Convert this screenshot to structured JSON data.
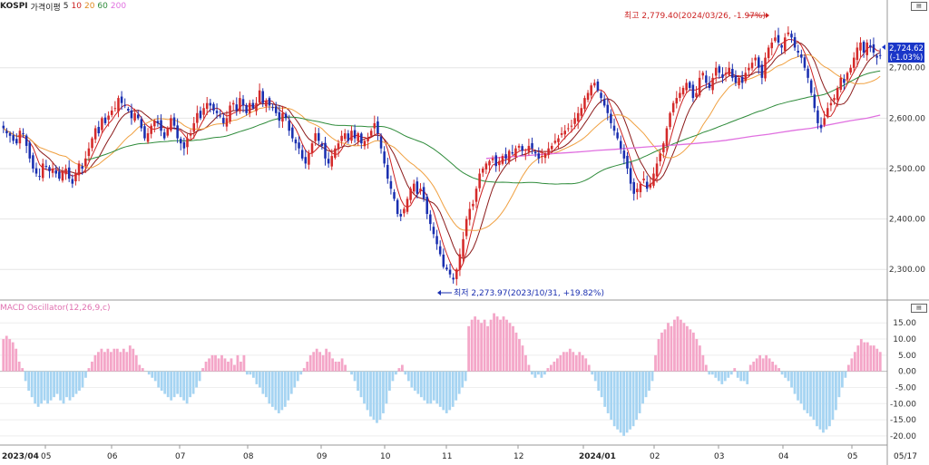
{
  "legend": {
    "symbol": "KOSPI",
    "indicator": "가격이평",
    "ma_items": [
      {
        "label": "5",
        "color": "#cc2222"
      },
      {
        "label": "10",
        "color": "#8b1a1a"
      },
      {
        "label": "20",
        "color": "#f0a040"
      },
      {
        "label": "60",
        "color": "#2e8b3a"
      },
      {
        "label": "200",
        "color": "#e070e0"
      }
    ]
  },
  "macd": {
    "label": "MACD Oscillator(12,26,9,c)",
    "positive_color": "#f4a6c8",
    "negative_color": "#a6d4f2"
  },
  "annotations": {
    "high": "최고 2,779.40(2024/03/26, -1.97%)",
    "low": "최저 2,273.97(2023/10/31, +19.82%)"
  },
  "current": {
    "price": "2,724.62",
    "change": "(-1.03%)"
  },
  "colors": {
    "up": "#d42a2a",
    "down": "#1a2fb0",
    "ma5": "#cc2222",
    "ma10": "#8b1a1a",
    "ma20": "#f0a040",
    "ma60": "#2e8b3a",
    "ma200": "#e070e0",
    "price_box": "#1a36c8"
  },
  "chart_data": {
    "type": "candlestick",
    "price_axis": {
      "ylim": [
        2250,
        2820
      ],
      "ticks": [
        2300,
        2400,
        2500,
        2600,
        2700
      ],
      "tick_labels": [
        "2,300.00",
        "2,400.00",
        "2,500.00",
        "2,600.00",
        "2,700.00"
      ]
    },
    "macd_axis": {
      "ylim": [
        -22,
        19
      ],
      "ticks": [
        15,
        10,
        5,
        0,
        -5,
        -10,
        -15,
        -20
      ],
      "tick_labels": [
        "15.00",
        "10.00",
        "5.00",
        "0.00",
        "-5.00",
        "-10.00",
        "-15.00",
        "-20.00"
      ]
    },
    "x_labels": [
      "2023/04",
      "05",
      "06",
      "07",
      "08",
      "09",
      "10",
      "11",
      "12",
      "2024/01",
      "02",
      "03",
      "04",
      "05",
      "05/17"
    ],
    "close": [
      2580,
      2570,
      2565,
      2555,
      2550,
      2575,
      2570,
      2545,
      2520,
      2500,
      2490,
      2485,
      2510,
      2505,
      2495,
      2500,
      2490,
      2480,
      2495,
      2500,
      2480,
      2470,
      2490,
      2510,
      2500,
      2520,
      2540,
      2560,
      2580,
      2570,
      2600,
      2590,
      2605,
      2615,
      2620,
      2640,
      2630,
      2625,
      2615,
      2600,
      2610,
      2600,
      2580,
      2560,
      2570,
      2585,
      2595,
      2590,
      2575,
      2560,
      2580,
      2600,
      2585,
      2560,
      2550,
      2540,
      2560,
      2570,
      2590,
      2610,
      2600,
      2620,
      2630,
      2625,
      2615,
      2610,
      2605,
      2590,
      2600,
      2625,
      2630,
      2615,
      2640,
      2625,
      2610,
      2630,
      2620,
      2630,
      2655,
      2630,
      2635,
      2625,
      2620,
      2610,
      2595,
      2610,
      2600,
      2575,
      2560,
      2550,
      2540,
      2520,
      2510,
      2530,
      2550,
      2570,
      2555,
      2545,
      2520,
      2510,
      2525,
      2540,
      2550,
      2565,
      2570,
      2555,
      2575,
      2560,
      2570,
      2550,
      2555,
      2560,
      2575,
      2590,
      2570,
      2540,
      2510,
      2480,
      2460,
      2440,
      2410,
      2405,
      2420,
      2440,
      2460,
      2470,
      2450,
      2460,
      2440,
      2410,
      2390,
      2370,
      2350,
      2330,
      2305,
      2300,
      2290,
      2280,
      2300,
      2330,
      2360,
      2400,
      2420,
      2430,
      2460,
      2490,
      2500,
      2510,
      2515,
      2520,
      2505,
      2515,
      2525,
      2520,
      2535,
      2530,
      2540,
      2545,
      2535,
      2530,
      2545,
      2540,
      2530,
      2520,
      2525,
      2530,
      2540,
      2545,
      2555,
      2560,
      2570,
      2575,
      2580,
      2585,
      2600,
      2610,
      2620,
      2640,
      2650,
      2665,
      2670,
      2655,
      2640,
      2625,
      2610,
      2590,
      2575,
      2560,
      2540,
      2520,
      2500,
      2470,
      2450,
      2460,
      2470,
      2480,
      2460,
      2470,
      2490,
      2510,
      2530,
      2550,
      2580,
      2610,
      2630,
      2640,
      2650,
      2660,
      2670,
      2660,
      2640,
      2650,
      2680,
      2690,
      2670,
      2660,
      2680,
      2700,
      2690,
      2680,
      2690,
      2700,
      2680,
      2670,
      2680,
      2670,
      2690,
      2700,
      2710,
      2720,
      2700,
      2680,
      2720,
      2740,
      2750,
      2760,
      2750,
      2740,
      2760,
      2770,
      2760,
      2740,
      2730,
      2720,
      2700,
      2680,
      2650,
      2620,
      2590,
      2580,
      2600,
      2620,
      2630,
      2640,
      2660,
      2680,
      2670,
      2690,
      2700,
      2720,
      2740,
      2750,
      2730,
      2750,
      2740,
      2730,
      2720,
      2724.62
    ],
    "ma200": [
      2520,
      2522,
      2524,
      2526,
      2528,
      2530,
      2532,
      2534,
      2536,
      2538,
      2540,
      2542,
      2544,
      2546,
      2548,
      2550,
      2553,
      2556,
      2560,
      2564,
      2568,
      2572,
      2576,
      2580,
      2585,
      2590,
      2595,
      2600,
      2606
    ],
    "macd_oscillator": [
      10,
      11,
      10,
      9,
      7,
      3,
      1,
      -3,
      -6,
      -8,
      -10,
      -11,
      -10,
      -9,
      -10,
      -9,
      -8,
      -7,
      -9,
      -10,
      -8,
      -9,
      -8,
      -7,
      -6,
      -5,
      -2,
      1,
      3,
      5,
      6,
      7,
      6,
      7,
      6,
      7,
      7,
      6,
      7,
      6,
      8,
      7,
      5,
      2,
      1,
      0,
      -1,
      -2,
      -3,
      -5,
      -6,
      -7,
      -8,
      -9,
      -8,
      -7,
      -8,
      -9,
      -10,
      -8,
      -7,
      -5,
      -3,
      1,
      3,
      4,
      5,
      5,
      4,
      5,
      4,
      3,
      4,
      2,
      5,
      3,
      5,
      -1,
      -1,
      -2,
      -4,
      -5,
      -7,
      -8,
      -10,
      -11,
      -12,
      -13,
      -12,
      -11,
      -9,
      -7,
      -5,
      -3,
      -1,
      1,
      3,
      5,
      6,
      7,
      6,
      5,
      7,
      6,
      4,
      3,
      3,
      4,
      2,
      0,
      -1,
      -3,
      -6,
      -8,
      -10,
      -12,
      -14,
      -15,
      -16,
      -15,
      -13,
      -10,
      -6,
      -3,
      -1,
      1,
      2,
      -1,
      -3,
      -5,
      -6,
      -7,
      -8,
      -9,
      -10,
      -10,
      -9,
      -10,
      -11,
      -12,
      -13,
      -12,
      -11,
      -9,
      -7,
      -5,
      -3,
      14,
      16,
      17,
      16,
      15,
      16,
      14,
      16,
      18,
      17,
      16,
      17,
      16,
      15,
      14,
      12,
      10,
      8,
      5,
      2,
      -1,
      -2,
      -1,
      -2,
      -1,
      1,
      2,
      3,
      4,
      5,
      6,
      6,
      7,
      6,
      5,
      6,
      5,
      4,
      2,
      -1,
      -3,
      -6,
      -8,
      -11,
      -13,
      -15,
      -17,
      -18,
      -19,
      -20,
      -19,
      -18,
      -17,
      -15,
      -13,
      -10,
      -8,
      -6,
      -3,
      5,
      10,
      12,
      13,
      15,
      14,
      16,
      17,
      16,
      15,
      14,
      13,
      12,
      10,
      8,
      5,
      2,
      -1,
      -1,
      -2,
      -3,
      -4,
      -3,
      -2,
      -1,
      1,
      -2,
      -3,
      -3,
      -4,
      2,
      3,
      4,
      5,
      4,
      5,
      4,
      3,
      2,
      1,
      -1,
      -2,
      -3,
      -5,
      -7,
      -9,
      -10,
      -12,
      -13,
      -14,
      -15,
      -17,
      -18,
      -19,
      -18,
      -17,
      -15,
      -12,
      -8,
      -5,
      -2,
      2,
      4,
      6,
      8,
      10,
      9,
      9,
      8,
      8,
      7,
      6
    ],
    "high_point": {
      "date": "2024/03/26",
      "value": 2779.4,
      "change_pct": -1.97
    },
    "low_point": {
      "date": "2023/10/31",
      "value": 2273.97,
      "change_pct": 19.82
    },
    "last": {
      "value": 2724.62,
      "change_pct": -1.03
    }
  }
}
